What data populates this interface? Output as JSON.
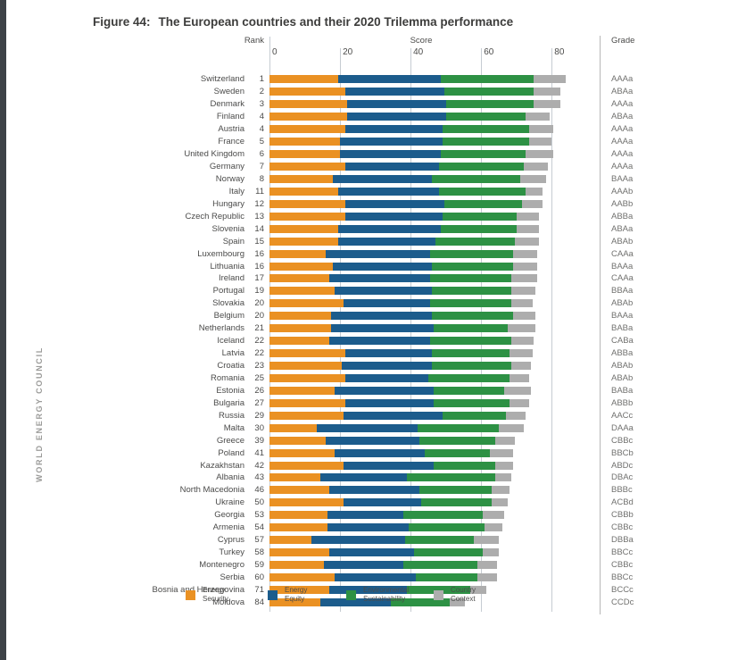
{
  "sidebar": {
    "brand": "WORLD ENERGY COUNCIL"
  },
  "chart_data": {
    "type": "bar",
    "orientation": "horizontal-stacked",
    "title_prefix": "Figure 44:",
    "title_text": "The European countries and their 2020 Trilemma performance",
    "columns": {
      "rank": "Rank",
      "score": "Score",
      "grade": "Grade"
    },
    "x_ticks": [
      0,
      20,
      40,
      60,
      80
    ],
    "xlim": [
      0,
      86
    ],
    "grid": true,
    "legend_position": "bottom",
    "legend": [
      {
        "key": "energy-security",
        "label": "Energy\nSecurity",
        "color": "#ea9123"
      },
      {
        "key": "energy-equity",
        "label": "Energy\nEquity",
        "color": "#1c5c8c"
      },
      {
        "key": "environmental-sustainability",
        "label": "Environmental\nSustainability",
        "color": "#2d9144"
      },
      {
        "key": "country-context",
        "label": "Country\nContext",
        "color": "#adadad"
      }
    ],
    "rows": [
      {
        "country": "Switzerland",
        "rank": "1",
        "grade": "AAAa",
        "segments": [
          19.5,
          29.0,
          26.5,
          9.0
        ]
      },
      {
        "country": "Sweden",
        "rank": "2",
        "grade": "ABAa",
        "segments": [
          21.5,
          28.0,
          25.5,
          7.5
        ]
      },
      {
        "country": "Denmark",
        "rank": "3",
        "grade": "AAAa",
        "segments": [
          22.0,
          28.0,
          25.0,
          7.5
        ]
      },
      {
        "country": "Finland",
        "rank": "4",
        "grade": "ABAa",
        "segments": [
          22.0,
          28.0,
          22.5,
          7.0
        ]
      },
      {
        "country": "Austria",
        "rank": "4",
        "grade": "AAAa",
        "segments": [
          21.5,
          27.5,
          24.5,
          7.0
        ]
      },
      {
        "country": "France",
        "rank": "5",
        "grade": "AAAa",
        "segments": [
          20.0,
          29.0,
          24.5,
          6.5
        ]
      },
      {
        "country": "United Kingdom",
        "rank": "6",
        "grade": "AAAa",
        "segments": [
          20.0,
          28.5,
          24.0,
          8.0
        ]
      },
      {
        "country": "Germany",
        "rank": "7",
        "grade": "AAAa",
        "segments": [
          21.5,
          26.5,
          24.0,
          7.0
        ]
      },
      {
        "country": "Norway",
        "rank": "8",
        "grade": "BAAa",
        "segments": [
          18.0,
          28.0,
          25.0,
          7.5
        ]
      },
      {
        "country": "Italy",
        "rank": "11",
        "grade": "AAAb",
        "segments": [
          19.5,
          28.5,
          24.5,
          5.0
        ]
      },
      {
        "country": "Hungary",
        "rank": "12",
        "grade": "AABb",
        "segments": [
          21.5,
          28.0,
          22.0,
          6.0
        ]
      },
      {
        "country": "Czech Republic",
        "rank": "13",
        "grade": "ABBa",
        "segments": [
          21.5,
          27.5,
          21.0,
          6.5
        ]
      },
      {
        "country": "Slovenia",
        "rank": "14",
        "grade": "ABAa",
        "segments": [
          19.5,
          29.0,
          21.5,
          6.5
        ]
      },
      {
        "country": "Spain",
        "rank": "15",
        "grade": "ABAb",
        "segments": [
          19.5,
          27.5,
          22.5,
          7.0
        ]
      },
      {
        "country": "Luxembourg",
        "rank": "16",
        "grade": "CAAa",
        "segments": [
          16.0,
          29.5,
          23.5,
          7.0
        ]
      },
      {
        "country": "Lithuania",
        "rank": "16",
        "grade": "BAAa",
        "segments": [
          18.0,
          28.0,
          23.0,
          7.0
        ]
      },
      {
        "country": "Ireland",
        "rank": "17",
        "grade": "CAAa",
        "segments": [
          17.0,
          28.5,
          23.0,
          7.5
        ]
      },
      {
        "country": "Portugal",
        "rank": "19",
        "grade": "BBAa",
        "segments": [
          18.5,
          27.5,
          22.5,
          7.0
        ]
      },
      {
        "country": "Slovakia",
        "rank": "20",
        "grade": "ABAb",
        "segments": [
          21.0,
          24.5,
          23.0,
          6.0
        ]
      },
      {
        "country": "Belgium",
        "rank": "20",
        "grade": "BAAa",
        "segments": [
          17.5,
          28.5,
          23.0,
          6.5
        ]
      },
      {
        "country": "Netherlands",
        "rank": "21",
        "grade": "BABa",
        "segments": [
          17.5,
          29.0,
          21.0,
          8.0
        ]
      },
      {
        "country": "Iceland",
        "rank": "22",
        "grade": "CABa",
        "segments": [
          17.0,
          28.5,
          23.0,
          6.5
        ]
      },
      {
        "country": "Latvia",
        "rank": "22",
        "grade": "ABBa",
        "segments": [
          21.5,
          24.5,
          22.0,
          6.5
        ]
      },
      {
        "country": "Croatia",
        "rank": "23",
        "grade": "ABAb",
        "segments": [
          20.5,
          25.5,
          22.5,
          5.5
        ]
      },
      {
        "country": "Romania",
        "rank": "25",
        "grade": "ABAb",
        "segments": [
          21.5,
          23.5,
          23.0,
          5.5
        ]
      },
      {
        "country": "Estonia",
        "rank": "26",
        "grade": "BABa",
        "segments": [
          18.5,
          28.0,
          20.0,
          7.5
        ]
      },
      {
        "country": "Bulgaria",
        "rank": "27",
        "grade": "ABBb",
        "segments": [
          21.5,
          25.0,
          21.5,
          5.5
        ]
      },
      {
        "country": "Russia",
        "rank": "29",
        "grade": "AACc",
        "segments": [
          21.0,
          28.0,
          18.0,
          5.5
        ]
      },
      {
        "country": "Malta",
        "rank": "30",
        "grade": "DAAa",
        "segments": [
          13.5,
          28.5,
          23.0,
          7.0
        ]
      },
      {
        "country": "Greece",
        "rank": "39",
        "grade": "CBBc",
        "segments": [
          16.0,
          26.5,
          21.5,
          5.5
        ]
      },
      {
        "country": "Poland",
        "rank": "41",
        "grade": "BBCb",
        "segments": [
          18.5,
          25.5,
          18.5,
          6.5
        ]
      },
      {
        "country": "Kazakhstan",
        "rank": "42",
        "grade": "ABDc",
        "segments": [
          21.0,
          25.5,
          17.5,
          5.0
        ]
      },
      {
        "country": "Albania",
        "rank": "43",
        "grade": "DBAc",
        "segments": [
          14.5,
          24.5,
          25.0,
          4.5
        ]
      },
      {
        "country": "North Macedonia",
        "rank": "46",
        "grade": "BBBc",
        "segments": [
          17.0,
          25.5,
          20.5,
          5.0
        ]
      },
      {
        "country": "Ukraine",
        "rank": "50",
        "grade": "ACBd",
        "segments": [
          21.0,
          22.0,
          20.0,
          4.5
        ]
      },
      {
        "country": "Georgia",
        "rank": "53",
        "grade": "CBBb",
        "segments": [
          16.5,
          21.5,
          22.5,
          6.0
        ]
      },
      {
        "country": "Armenia",
        "rank": "54",
        "grade": "CBBc",
        "segments": [
          16.5,
          23.0,
          21.5,
          5.0
        ]
      },
      {
        "country": "Cyprus",
        "rank": "57",
        "grade": "DBBa",
        "segments": [
          12.0,
          26.5,
          19.5,
          7.0
        ]
      },
      {
        "country": "Turkey",
        "rank": "58",
        "grade": "BBCc",
        "segments": [
          17.0,
          24.0,
          19.5,
          4.5
        ]
      },
      {
        "country": "Montenegro",
        "rank": "59",
        "grade": "CBBc",
        "segments": [
          15.5,
          22.5,
          21.0,
          5.5
        ]
      },
      {
        "country": "Serbia",
        "rank": "60",
        "grade": "BBCc",
        "segments": [
          18.5,
          23.0,
          17.5,
          5.5
        ]
      },
      {
        "country": "Bosnia and Herzegovina",
        "rank": "71",
        "grade": "BCCc",
        "segments": [
          17.0,
          22.0,
          18.0,
          4.5
        ]
      },
      {
        "country": "Moldova",
        "rank": "84",
        "grade": "CCDc",
        "segments": [
          14.5,
          20.0,
          16.5,
          4.5
        ]
      }
    ]
  }
}
